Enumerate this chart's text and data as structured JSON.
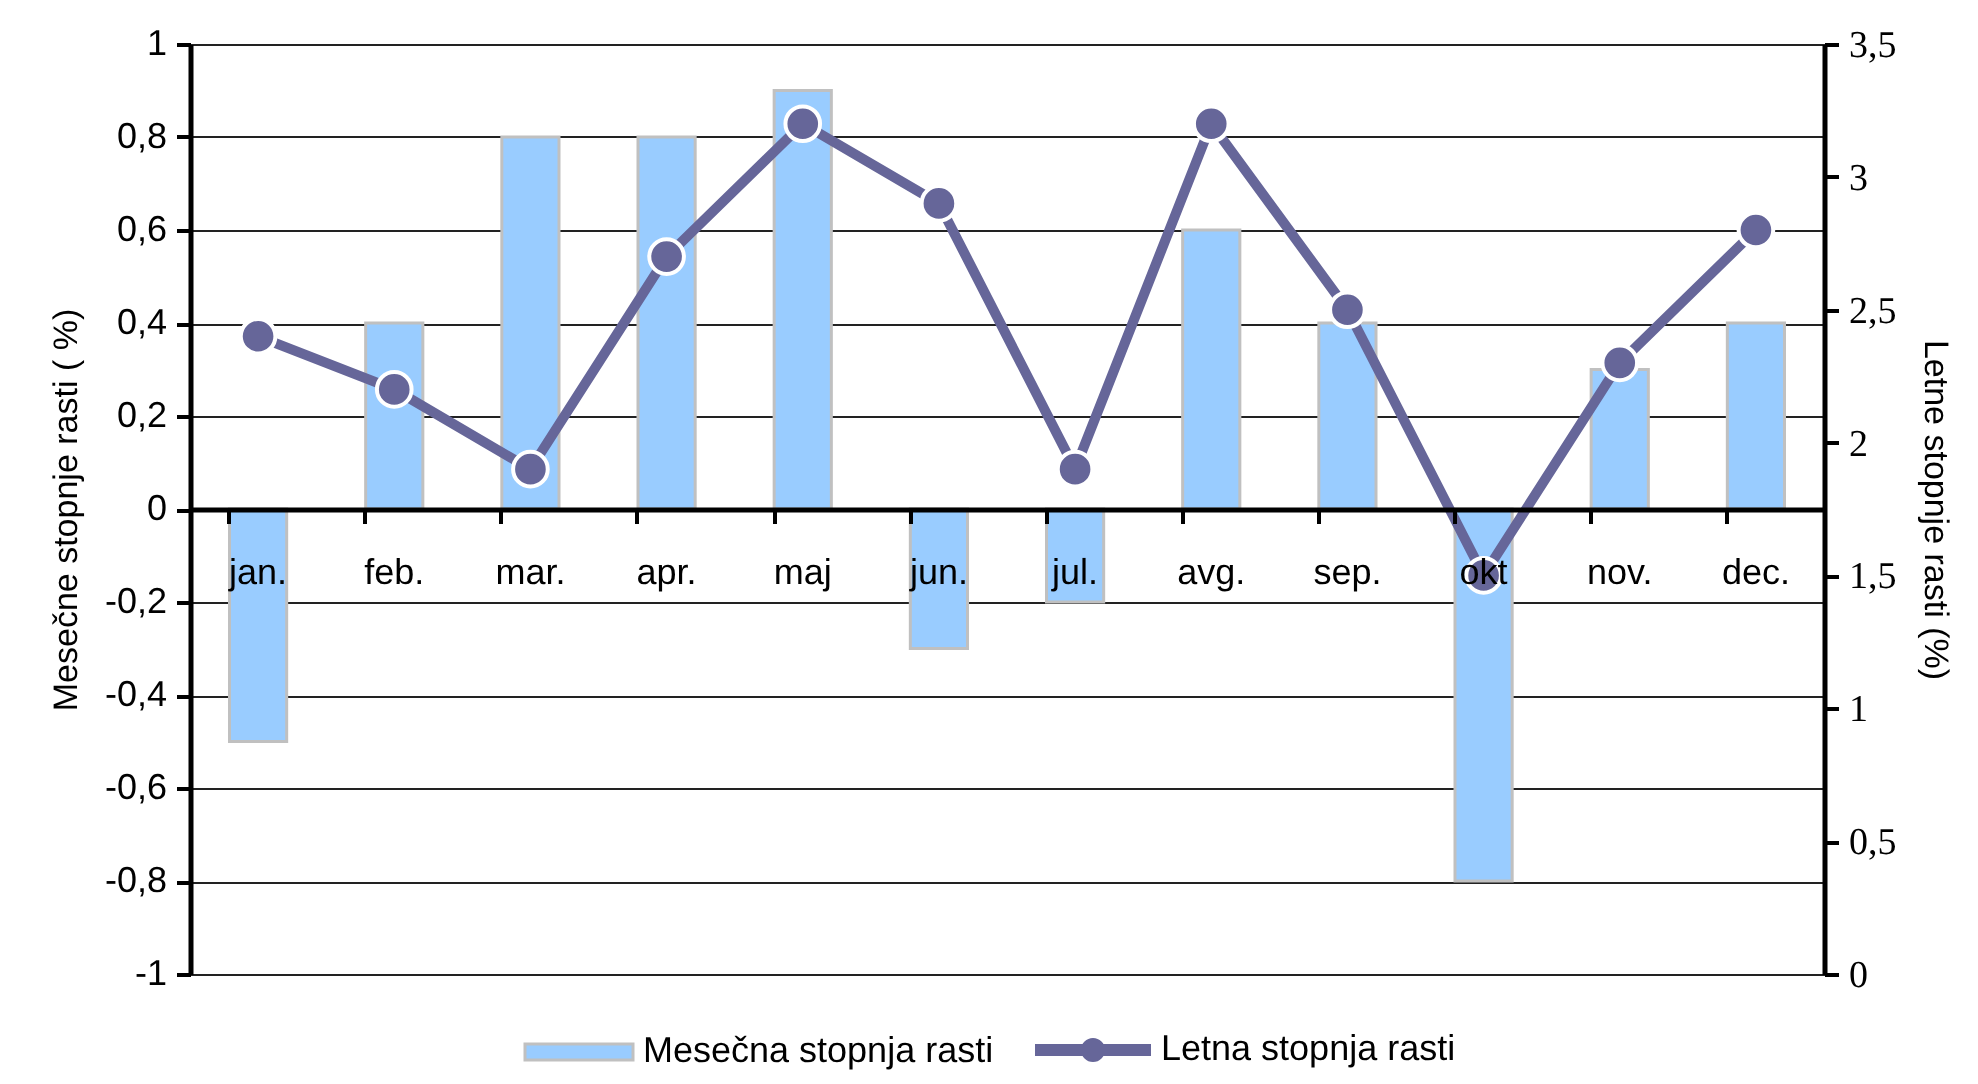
{
  "chart_data": {
    "type": "bar",
    "categories": [
      "jan.",
      "feb.",
      "mar.",
      "apr.",
      "maj",
      "jun.",
      "jul.",
      "avg.",
      "sep.",
      "okt",
      "nov.",
      "dec."
    ],
    "ylabel": "Mesečne stopnje rasti ( %)",
    "y2label": "Letne stopnje rasti (%)",
    "ylim": [
      -1,
      1
    ],
    "yticks": [
      -1,
      {
        "value": -0.8,
        "label": "-0,8"
      },
      {
        "value": -0.6,
        "label": "-0,6"
      },
      {
        "value": -0.4,
        "label": "-0,4"
      },
      {
        "value": -0.2,
        "label": "-0,2"
      },
      0,
      {
        "value": 0.2,
        "label": "0,2"
      },
      {
        "value": 0.4,
        "label": "0,4"
      },
      {
        "value": 0.6,
        "label": "0,6"
      },
      {
        "value": 0.8,
        "label": "0,8"
      },
      1
    ],
    "y2lim": [
      0,
      3.5
    ],
    "y2ticks": [
      0,
      {
        "value": 0.5,
        "label": "0,5"
      },
      1,
      {
        "value": 1.5,
        "label": "1,5"
      },
      2,
      {
        "value": 2.5,
        "label": "2,5"
      },
      3,
      {
        "value": 3.5,
        "label": "3,5"
      }
    ],
    "series": [
      {
        "name": "Mesečna stopnja rasti",
        "color": "#99ccff",
        "values": [
          -0.5,
          0.4,
          0.8,
          0.8,
          0.9,
          -0.3,
          -0.2,
          0.6,
          0.4,
          -0.8,
          0.3,
          0.4
        ]
      },
      {
        "name": "Letna stopnja rasti",
        "type": "line",
        "axis": "y2",
        "color": "#666699",
        "values": [
          2.4,
          2.2,
          1.9,
          2.7,
          3.2,
          2.9,
          1.9,
          3.2,
          2.5,
          1.5,
          2.3,
          2.8
        ]
      }
    ],
    "marker": "circle",
    "grid": "y",
    "legend": "bottom"
  }
}
